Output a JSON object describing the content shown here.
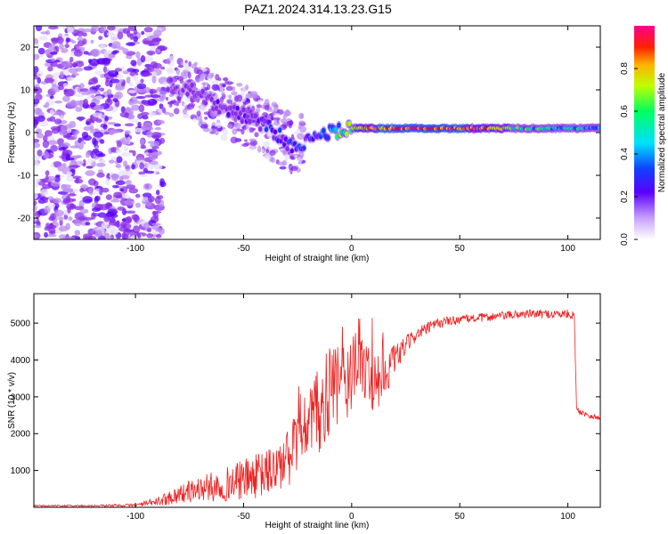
{
  "title": "PAZ1.2024.314.13.23.G15",
  "colormap": [
    "#e8e0fa",
    "#b98af0",
    "#8a2ce8",
    "#5a00ff",
    "#1040ff",
    "#00c0ff",
    "#00ff80",
    "#a0ff00",
    "#ffe000",
    "#ff8000",
    "#ff0000",
    "#ff0080"
  ],
  "chart_data": [
    {
      "type": "heatmap",
      "xlabel": "Height of straight line (km)",
      "ylabel": "Frequency (Hz)",
      "xlim": [
        -147,
        115
      ],
      "ylim": [
        -25,
        25
      ],
      "xticks": [
        "-100",
        "-50",
        "0",
        "50",
        "100"
      ],
      "yticks": [
        "-20",
        "-10",
        "0",
        "10",
        "20"
      ],
      "colorbar": {
        "label": "Normalized spectral amplitude",
        "range": [
          0,
          1
        ],
        "ticks": [
          "0.0",
          "0.2",
          "0.4",
          "0.6",
          "0.8"
        ]
      },
      "ridge": {
        "x": [
          -85,
          -75,
          -65,
          -55,
          -45,
          -38,
          -33,
          -28,
          -20,
          -10,
          0,
          10,
          20,
          50,
          80,
          100,
          115
        ],
        "y": [
          11,
          10,
          7,
          5,
          3,
          1,
          -1,
          -3,
          -2,
          0,
          1,
          1,
          1,
          1,
          1,
          1,
          1
        ],
        "amplitude": [
          0.15,
          0.2,
          0.2,
          0.2,
          0.25,
          0.3,
          0.3,
          0.3,
          0.3,
          0.45,
          0.6,
          0.9,
          1.0,
          0.95,
          0.55,
          0.5,
          0.4
        ]
      }
    },
    {
      "type": "line",
      "xlabel": "Height of straight line (km)",
      "ylabel": "SNR (10 * v/v)",
      "xlim": [
        -147,
        115
      ],
      "ylim": [
        0,
        5800
      ],
      "xticks": [
        "-100",
        "-50",
        "0",
        "50",
        "100"
      ],
      "yticks": [
        "1000",
        "2000",
        "3000",
        "4000",
        "5000"
      ],
      "series": [
        {
          "color": "#ee2222",
          "x": [
            -147,
            -120,
            -100,
            -90,
            -80,
            -70,
            -60,
            -50,
            -40,
            -30,
            -25,
            -20,
            -15,
            -10,
            -5,
            0,
            5,
            10,
            15,
            20,
            25,
            30,
            40,
            50,
            60,
            70,
            80,
            90,
            100,
            103,
            104,
            105,
            110,
            115
          ],
          "values": [
            40,
            40,
            60,
            150,
            350,
            500,
            600,
            750,
            900,
            1250,
            1700,
            2300,
            2600,
            3100,
            3350,
            3600,
            3900,
            3400,
            3600,
            4000,
            4400,
            4700,
            5000,
            5100,
            5150,
            5200,
            5250,
            5250,
            5250,
            5200,
            2700,
            2600,
            2500,
            2400
          ],
          "noise": [
            20,
            25,
            40,
            120,
            250,
            350,
            450,
            550,
            650,
            800,
            1000,
            1100,
            1200,
            1300,
            1200,
            1100,
            1000,
            900,
            700,
            400,
            250,
            180,
            150,
            120,
            120,
            120,
            120,
            120,
            120,
            100,
            80,
            80,
            80,
            80
          ]
        }
      ]
    }
  ]
}
